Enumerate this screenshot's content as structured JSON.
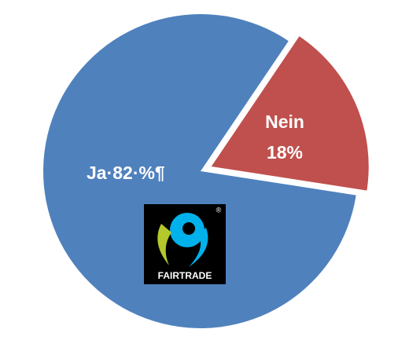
{
  "chart_data": {
    "type": "pie",
    "categories": [
      null,
      "Nein"
    ],
    "values": [
      82,
      18
    ],
    "value_labels": [
      "Ja·82·%¶",
      "18%"
    ],
    "colors": [
      "#4f81bd",
      "#c0504d"
    ],
    "logo": {
      "text": "FAIRTRADE",
      "mark": "®"
    }
  }
}
